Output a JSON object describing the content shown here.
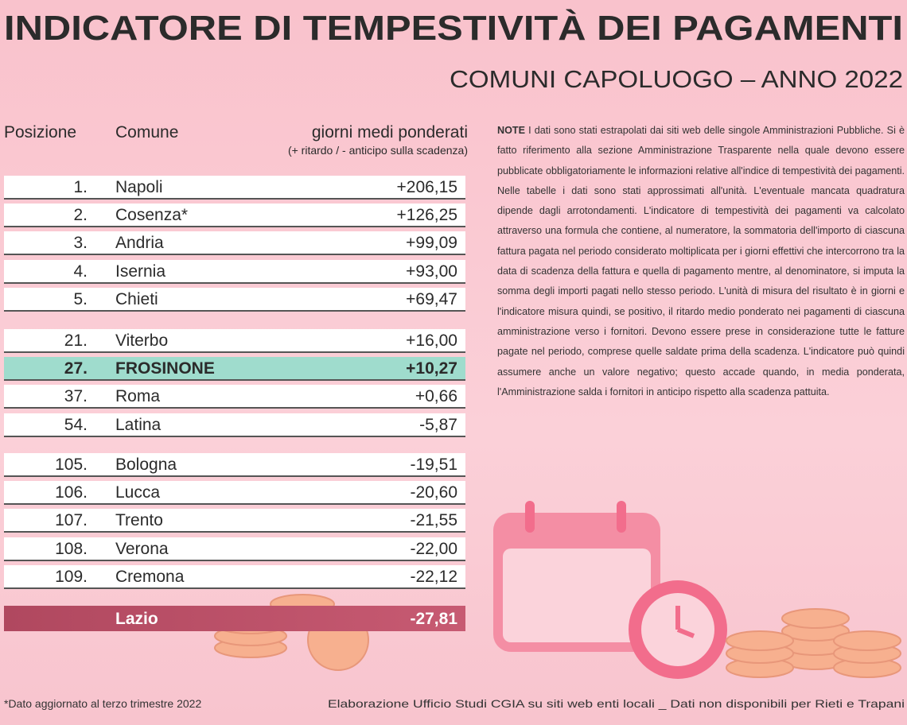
{
  "header": {
    "title": "INDICATORE DI TEMPESTIVITÀ DEI PAGAMENTI",
    "subtitle": "COMUNI CAPOLUOGO – ANNO 2022"
  },
  "table": {
    "headers": [
      "Posizione",
      "Comune",
      "giorni medi ponderati"
    ],
    "header_note": "(+ ritardo / - anticipo sulla scadenza)",
    "groups": [
      {
        "rows": [
          {
            "position": "1.",
            "comune": "Napoli",
            "value": "+206,15"
          },
          {
            "position": "2.",
            "comune": "Cosenza*",
            "value": "+126,25"
          },
          {
            "position": "3.",
            "comune": "Andria",
            "value": "+99,09"
          },
          {
            "position": "4.",
            "comune": "Isernia",
            "value": "+93,00"
          },
          {
            "position": "5.",
            "comune": "Chieti",
            "value": "+69,47"
          }
        ]
      },
      {
        "rows": [
          {
            "position": "21.",
            "comune": "Viterbo",
            "value": "+16,00"
          },
          {
            "position": "27.",
            "comune": "FROSINONE",
            "value": "+10,27",
            "highlight": true
          },
          {
            "position": "37.",
            "comune": "Roma",
            "value": "+0,66"
          },
          {
            "position": "54.",
            "comune": "Latina",
            "value": "-5,87"
          }
        ]
      },
      {
        "rows": [
          {
            "position": "105.",
            "comune": "Bologna",
            "value": "-19,51"
          },
          {
            "position": "106.",
            "comune": "Lucca",
            "value": "-20,60"
          },
          {
            "position": "107.",
            "comune": "Trento",
            "value": "-21,55"
          },
          {
            "position": "108.",
            "comune": "Verona",
            "value": "-22,00"
          },
          {
            "position": "109.",
            "comune": "Cremona",
            "value": "-22,12"
          }
        ]
      }
    ],
    "summary": {
      "comune": "Lazio",
      "value": "-27,81"
    }
  },
  "note": {
    "label": "NOTE",
    "text": "I dati sono stati estrapolati dai siti web delle singole Amministrazioni Pubbliche. Si è fatto riferimento alla sezione Amministrazione Trasparente nella quale devono essere pubblicate obbligatoriamente le informazioni relative all'indice di tempestività dei pagamenti. Nelle tabelle i dati sono stati approssimati all'unità. L'eventuale mancata quadratura dipende dagli arrotondamenti. L'indicatore di tempestività dei pagamenti va calcolato attraverso una formula che contiene, al numeratore, la sommatoria dell'importo di ciascuna fattura pagata nel periodo considerato moltiplicata per i giorni effettivi che intercorrono tra la data di scadenza della fattura e quella di pagamento mentre, al denominatore, si imputa la somma degli importi pagati nello stesso periodo. L'unità di misura del risultato è in giorni e l'indicatore misura quindi, se positivo, il ritardo medio ponderato nei pagamenti di ciascuna amministrazione verso i fornitori. Devono essere prese in considerazione tutte le fatture pagate nel periodo, comprese quelle saldate prima della scadenza. L'indicatore può quindi assumere anche un valore negativo; questo accade quando, in media ponderata, l'Amministrazione salda i fornitori in anticipo rispetto alla scadenza pattuita."
  },
  "footer": {
    "left": "*Dato aggiornato al terzo trimestre 2022",
    "right": "Elaborazione Ufficio Studi CGIA su siti web enti locali _ Dati non disponibili per Rieti e Trapani"
  }
}
